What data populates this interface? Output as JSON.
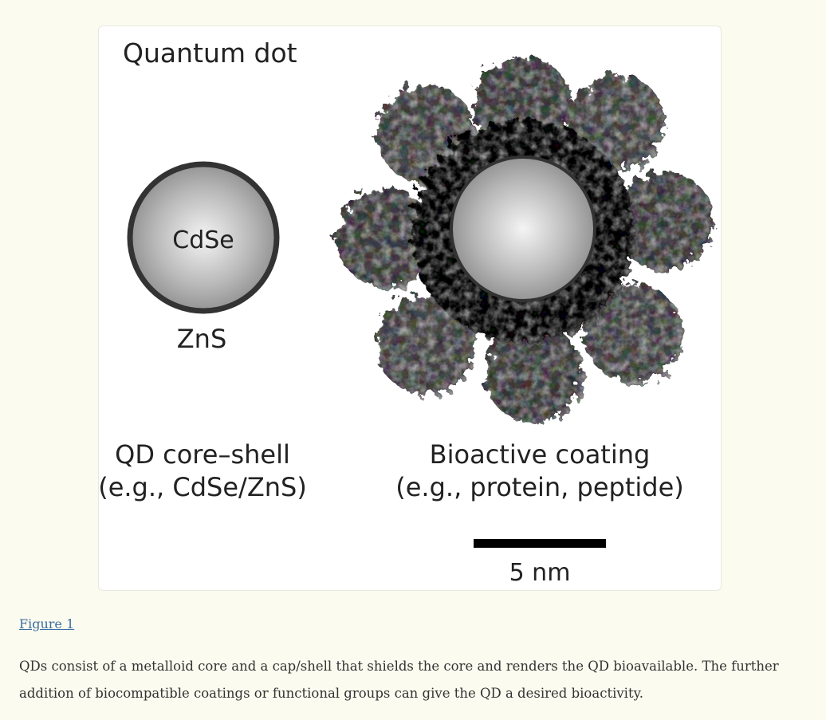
{
  "figure": {
    "title": "Quantum dot",
    "core_label": "CdSe",
    "shell_label": "ZnS",
    "left_caption": [
      "QD core–shell",
      "(e.g., CdSe/ZnS)"
    ],
    "right_caption": [
      "Bioactive coating",
      "(e.g., protein, peptide)"
    ],
    "scale_label": "5 nm"
  },
  "figure_link": "Figure 1",
  "caption": "QDs consist of a metalloid core and a cap/shell that shields the core and renders the QD bioavailable. The further addition of biocompatible coatings or functional groups can give the QD a desired bioactivity."
}
